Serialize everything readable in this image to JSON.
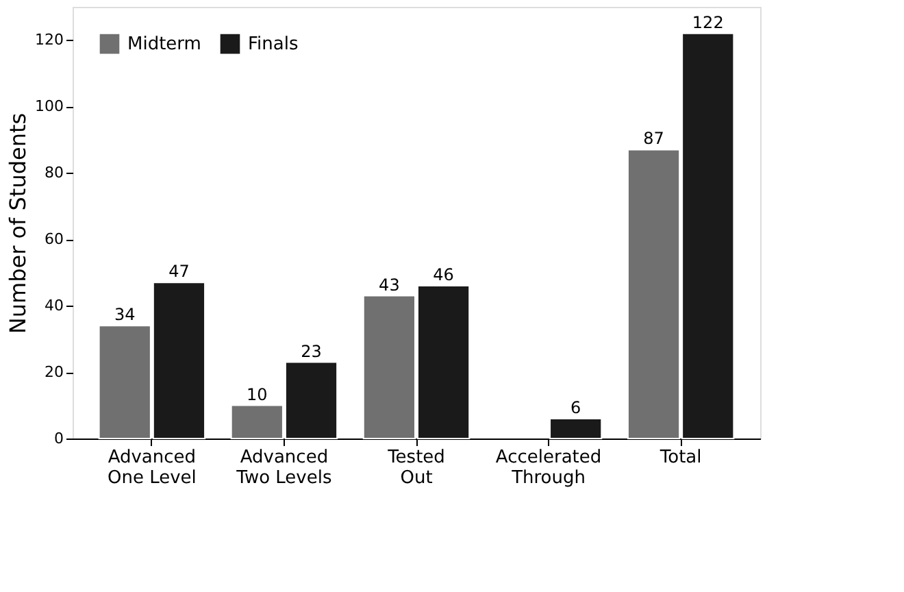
{
  "chart_data": {
    "type": "bar",
    "ylabel": "Number of Students",
    "categories": [
      "Advanced One Level",
      "Advanced Two Levels",
      "Tested Out",
      "Accelerated Through",
      "Total"
    ],
    "series": [
      {
        "name": "Midterm",
        "color": "#707070",
        "values": [
          34,
          10,
          43,
          null,
          87
        ]
      },
      {
        "name": "Finals",
        "color": "#1a1a1a",
        "values": [
          47,
          23,
          46,
          6,
          122
        ]
      }
    ],
    "ylim": [
      0,
      130
    ],
    "yticks": [
      0,
      20,
      40,
      60,
      80,
      100,
      120
    ],
    "grid": false,
    "legend": "top left",
    "data_labels": true
  }
}
